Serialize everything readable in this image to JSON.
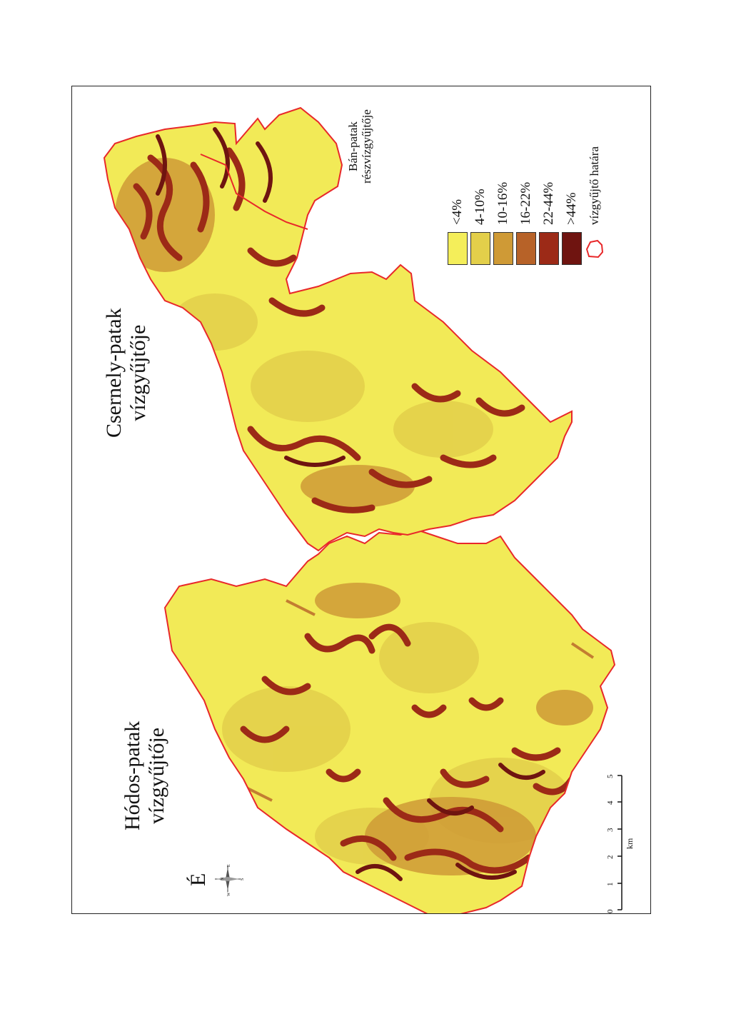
{
  "map": {
    "labels": {
      "hodos_line1": "Hódos-patak",
      "hodos_line2": "vízgyűjtője",
      "csernely_line1": "Csernely-patak",
      "csernely_line2": "vízgyűjtője",
      "ban_line1": "Bán-patak",
      "ban_line2": "részvízgyűjtője"
    },
    "north_arrow": {
      "label": "É",
      "n": "N",
      "s": "S",
      "e": "E",
      "w": "W"
    },
    "scale_bar": {
      "unit": "km",
      "ticks": [
        "0",
        "1",
        "2",
        "3",
        "4",
        "5"
      ]
    },
    "legend": {
      "classes": [
        {
          "label": "<4%",
          "color": "#f4ee5a"
        },
        {
          "label": "4-10%",
          "color": "#e3cf4a"
        },
        {
          "label": "10-16%",
          "color": "#cf9a36"
        },
        {
          "label": "16-22%",
          "color": "#b76228"
        },
        {
          "label": "22-44%",
          "color": "#9c2a17"
        },
        {
          "label": ">44%",
          "color": "#6f1410"
        }
      ],
      "boundary_label": "vízgyűjtő határa",
      "boundary_color": "#e8282a"
    }
  }
}
